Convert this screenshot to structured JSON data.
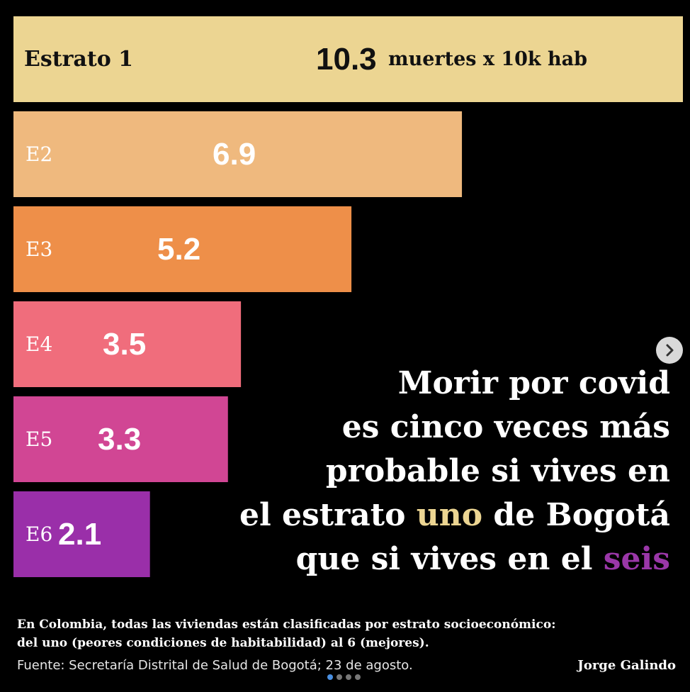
{
  "chart_data": {
    "type": "bar",
    "orientation": "horizontal",
    "categories": [
      "Estrato 1",
      "E2",
      "E3",
      "E4",
      "E5",
      "E6"
    ],
    "values": [
      10.3,
      6.9,
      5.2,
      3.5,
      3.3,
      2.1
    ],
    "value_labels": [
      "10.3",
      "6.9",
      "5.2",
      "3.5",
      "3.3",
      "2.1"
    ],
    "unit_label": "muertes x 10k hab",
    "colors": [
      "#ecd592",
      "#efb97e",
      "#ee8f49",
      "#f06d7c",
      "#d14694",
      "#9a2fa9"
    ],
    "title": "",
    "xlabel": "",
    "ylabel": "",
    "grid": false
  },
  "headline": {
    "line1": "Morir por covid",
    "line2": "es cinco veces más",
    "line3": "probable si vives en",
    "line4_pre": "el estrato ",
    "line4_highlight": "uno",
    "line4_post": " de Bogotá",
    "line5_pre": "que si vives en el ",
    "line5_highlight": "seis"
  },
  "note": {
    "line1": "En Colombia, todas las viviendas están clasificadas por estrato socioeconómico:",
    "line2": "del uno (peores condiciones de habitabilidad) al 6 (mejores)."
  },
  "source": "Fuente: Secretaría Distrital de Salud de Bogotá; 23 de agosto.",
  "author": "Jorge Galindo",
  "carousel": {
    "next_icon": "chevron-right-icon",
    "dots": 4,
    "active_dot": 0
  }
}
